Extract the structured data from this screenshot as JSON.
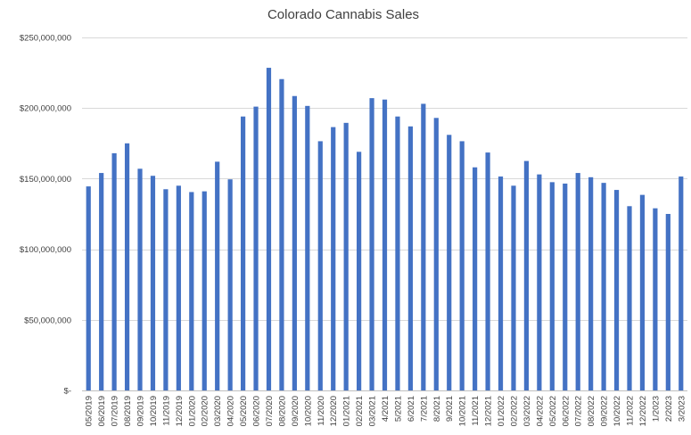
{
  "chart_data": {
    "type": "bar",
    "title": "Colorado Cannabis Sales",
    "xlabel": "",
    "ylabel": "",
    "ylim": [
      0,
      250000000
    ],
    "yticks": [
      0,
      50000000,
      100000000,
      150000000,
      200000000,
      250000000
    ],
    "ytick_labels": [
      "$-",
      "$50,000,000",
      "$100,000,000",
      "$150,000,000",
      "$200,000,000",
      "$250,000,000"
    ],
    "grid": true,
    "legend": "none",
    "bar_color": "#4472c4",
    "categories": [
      "05/2019",
      "06/2019",
      "07/2019",
      "08/2019",
      "09/2019",
      "10/2019",
      "11/2019",
      "12/2019",
      "01/2020",
      "02/2020",
      "03/2020",
      "04/2020",
      "05/2020",
      "06/2020",
      "07/2020",
      "08/2020",
      "09/2020",
      "10/2020",
      "11/2020",
      "12/2020",
      "01/2021",
      "02/2021",
      "03/2021",
      "4/2021",
      "5/2021",
      "6/2021",
      "7/2021",
      "8/2021",
      "9/2021",
      "10/2021",
      "11/2021",
      "12/2021",
      "01/2022",
      "02/2022",
      "03/2022",
      "04/2022",
      "05/2022",
      "06/2022",
      "07/2022",
      "08/2022",
      "09/2022",
      "10/2022",
      "11/2022",
      "12/2022",
      "1/2023",
      "2/2023",
      "3/2023"
    ],
    "values": [
      144500000,
      154000000,
      168000000,
      175000000,
      157000000,
      152000000,
      142500000,
      145000000,
      140500000,
      141000000,
      162000000,
      149500000,
      194000000,
      201000000,
      228500000,
      220500000,
      208500000,
      201500000,
      176500000,
      186500000,
      189500000,
      169000000,
      207000000,
      206000000,
      194000000,
      187000000,
      203000000,
      193000000,
      181000000,
      176500000,
      158000000,
      168500000,
      151500000,
      145000000,
      162500000,
      153000000,
      147500000,
      146500000,
      154000000,
      151000000,
      147000000,
      142000000,
      130500000,
      138500000,
      129000000,
      125000000,
      151500000
    ]
  }
}
